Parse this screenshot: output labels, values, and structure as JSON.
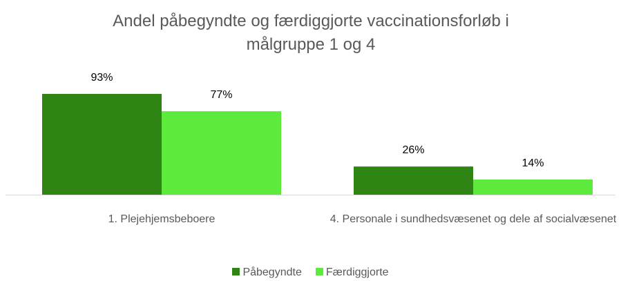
{
  "chart_data": {
    "type": "bar",
    "title": "Andel påbegyndte og færdiggjorte vaccinationsforløb i målgruppe 1 og 4",
    "categories": [
      "1. Plejehjemsbeboere",
      "4. Personale i sundhedsvæsenet og dele af socialvæsenet"
    ],
    "series": [
      {
        "name": "Påbegyndte",
        "color": "#2e8514",
        "values": [
          93,
          26
        ],
        "value_labels": [
          "93%",
          "26%"
        ]
      },
      {
        "name": "Færdiggjorte",
        "color": "#5eea3c",
        "values": [
          77,
          14
        ],
        "value_labels": [
          "77%",
          "14%"
        ]
      }
    ],
    "legend": "bottom"
  }
}
